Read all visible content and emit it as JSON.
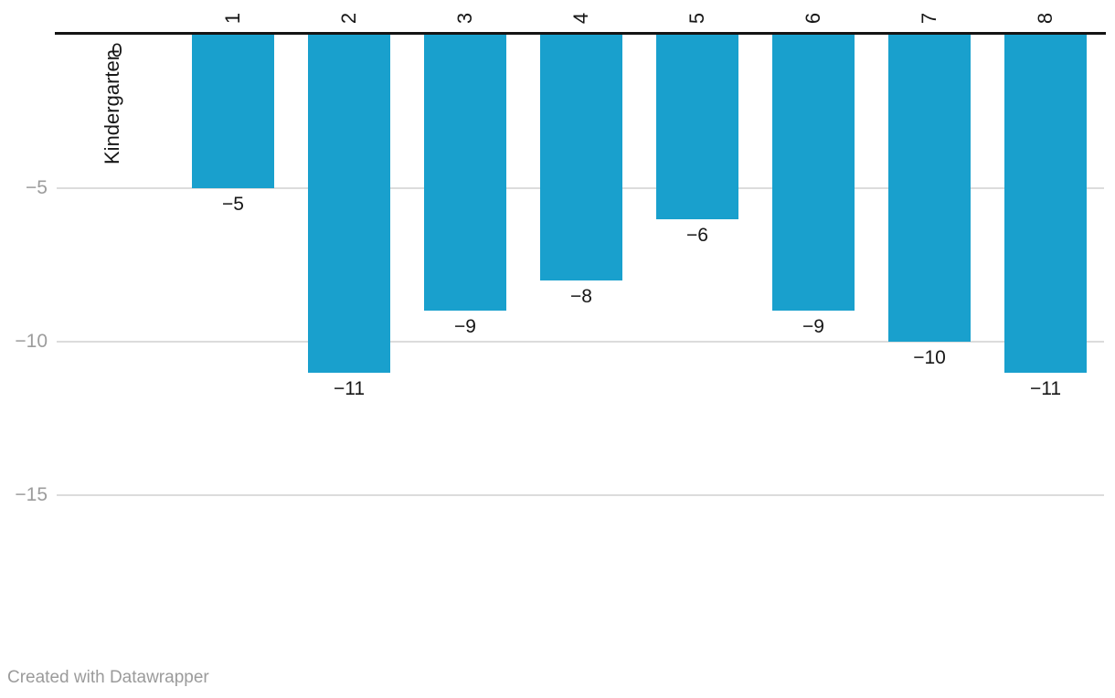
{
  "chart_data": {
    "type": "bar",
    "orientation": "vertical-columns",
    "title": "",
    "xlabel": "",
    "ylabel": "",
    "categories": [
      "Kindergarten",
      "1",
      "2",
      "3",
      "4",
      "5",
      "6",
      "7",
      "8"
    ],
    "values": [
      0,
      -5,
      -11,
      -9,
      -8,
      -6,
      -9,
      -10,
      -11
    ],
    "value_labels": [
      "0",
      "−5",
      "−11",
      "−9",
      "−8",
      "−6",
      "−9",
      "−10",
      "−11"
    ],
    "ylim": [
      -15,
      0
    ],
    "y_ticks": [
      {
        "value": -5,
        "label": "−5"
      },
      {
        "value": -10,
        "label": "−10"
      },
      {
        "value": -15,
        "label": "−15"
      }
    ],
    "grid": "horizontal-gridlines-on",
    "legend": "none",
    "category_labels_rotated": true,
    "baseline_at_zero_top": true
  },
  "colors": {
    "bar": "#19a0cd",
    "axis_line": "#141414",
    "gridline": "#dcdcdc",
    "tick_label": "#9c9c9c",
    "value_label": "#161616",
    "category_label": "#161616",
    "footer_text": "#9b9b9b",
    "background": "#ffffff"
  },
  "footer": {
    "credit": "Created with Datawrapper"
  }
}
